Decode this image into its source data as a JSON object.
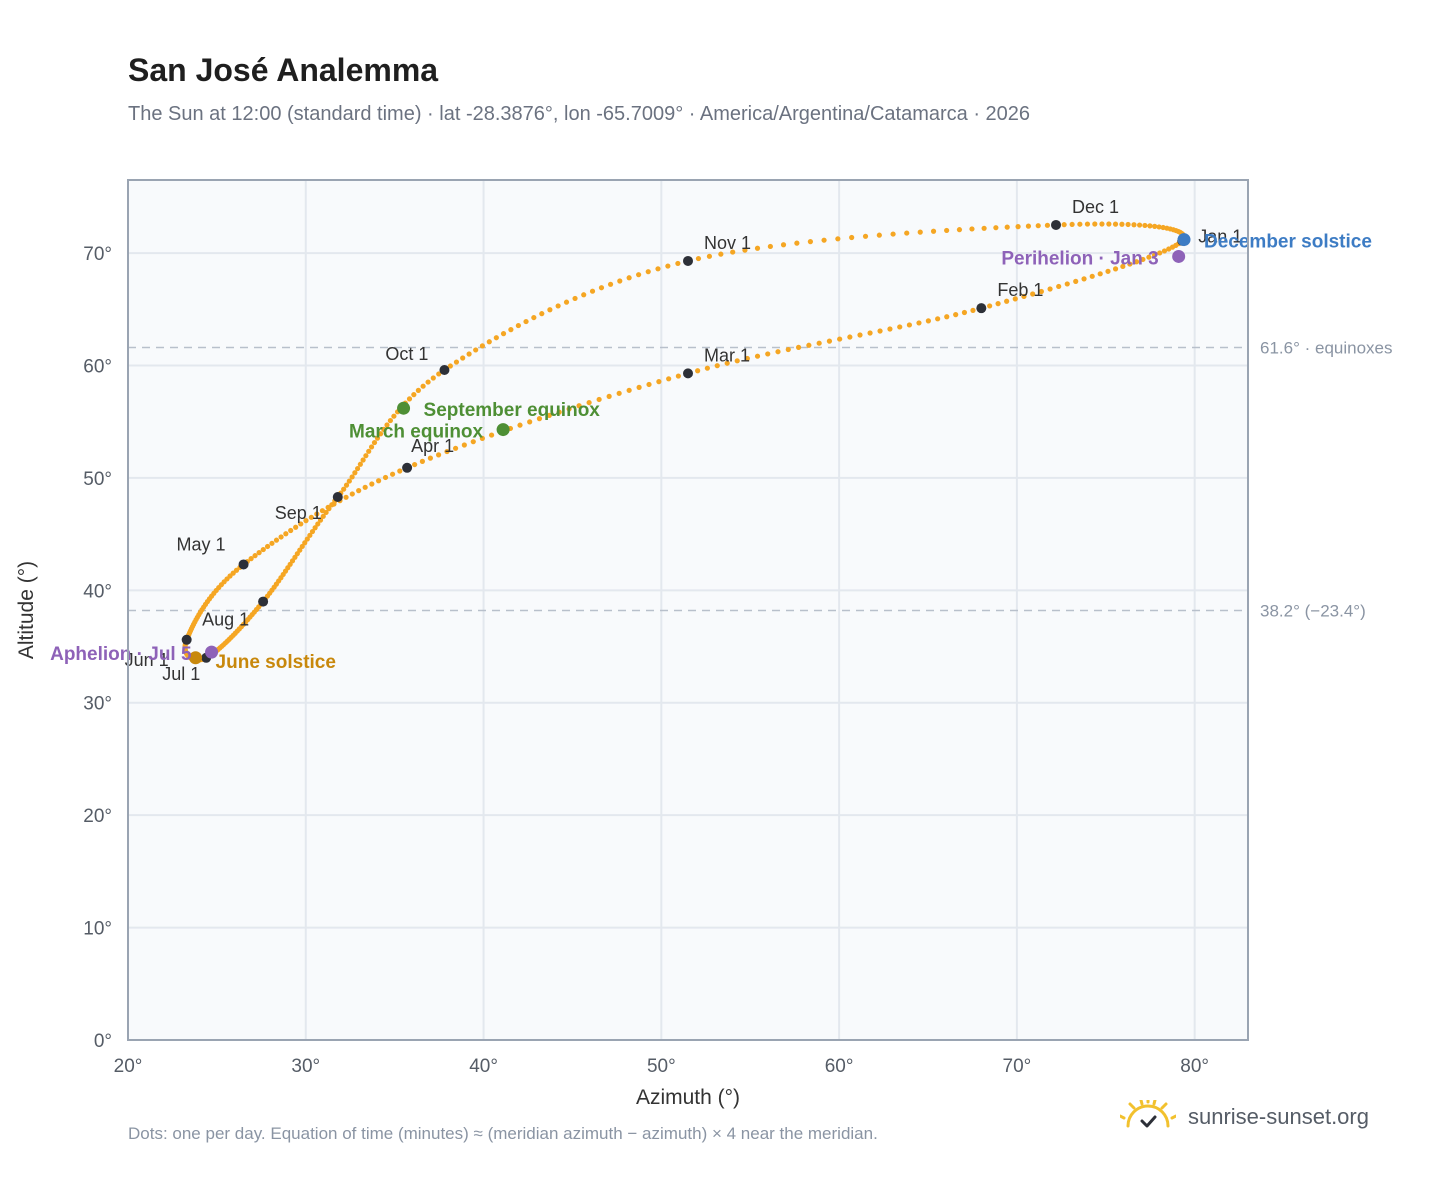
{
  "title": "San José Analemma",
  "subtitle": "The Sun at 12:00 (standard time) · lat -28.3876°, lon -65.7009° · America/Argentina/Catamarca · 2026",
  "footnote": "Dots: one per day. Equation of time (minutes) ≈ (meridian azimuth − azimuth) × 4 near the meridian.",
  "brand": "sunrise-sunset.org",
  "colors": {
    "path": "#f5a623",
    "month_dot": "#2d3038",
    "equinox": "#4e8f35",
    "june_solstice": "#c8880c",
    "december_solstice": "#3d7cc4",
    "apsis": "#8e62b8",
    "plot_bg": "#f8fafc",
    "grid": "#e3e8ee",
    "ref_line": "#b8c0cb"
  },
  "chart_data": {
    "type": "scatter",
    "xlabel": "Azimuth (°)",
    "ylabel": "Altitude (°)",
    "xlim": [
      20,
      83
    ],
    "ylim": [
      0,
      76.5
    ],
    "xticks": [
      20,
      30,
      40,
      50,
      60,
      70,
      80
    ],
    "yticks": [
      0,
      10,
      20,
      30,
      40,
      50,
      60,
      70
    ],
    "grid": true,
    "tick_suffix": "°",
    "reference_lines": [
      {
        "y": 61.6,
        "label": "61.6° · equinoxes"
      },
      {
        "y": 38.2,
        "label": "38.2° (−23.4°)"
      }
    ],
    "months": [
      {
        "label": "Jan 1",
        "az": 79.3,
        "alt": 71.1
      },
      {
        "label": "Feb 1",
        "az": 68.0,
        "alt": 65.1
      },
      {
        "label": "Mar 1",
        "az": 51.5,
        "alt": 59.3
      },
      {
        "label": "Apr 1",
        "az": 35.7,
        "alt": 50.9
      },
      {
        "label": "May 1",
        "az": 26.5,
        "alt": 42.3
      },
      {
        "label": "Jun 1",
        "az": 23.3,
        "alt": 35.6
      },
      {
        "label": "Jul 1",
        "az": 24.4,
        "alt": 34.0
      },
      {
        "label": "Aug 1",
        "az": 27.6,
        "alt": 39.0
      },
      {
        "label": "Sep 1",
        "az": 31.8,
        "alt": 48.3
      },
      {
        "label": "Oct 1",
        "az": 37.8,
        "alt": 59.6
      },
      {
        "label": "Nov 1",
        "az": 51.5,
        "alt": 69.3
      },
      {
        "label": "Dec 1",
        "az": 72.2,
        "alt": 72.5
      }
    ],
    "events": [
      {
        "label": "March equinox",
        "az": 41.1,
        "alt": 54.3,
        "kind": "equinox"
      },
      {
        "label": "September equinox",
        "az": 35.5,
        "alt": 56.2,
        "kind": "equinox"
      },
      {
        "label": "June solstice",
        "az": 23.8,
        "alt": 34.0,
        "kind": "june_solstice"
      },
      {
        "label": "December solstice",
        "az": 79.4,
        "alt": 71.2,
        "kind": "december_solstice"
      },
      {
        "label": "Aphelion · Jul 5",
        "az": 24.7,
        "alt": 34.5,
        "kind": "apsis"
      },
      {
        "label": "Perihelion · Jan 3",
        "az": 79.1,
        "alt": 69.7,
        "kind": "apsis"
      }
    ]
  }
}
